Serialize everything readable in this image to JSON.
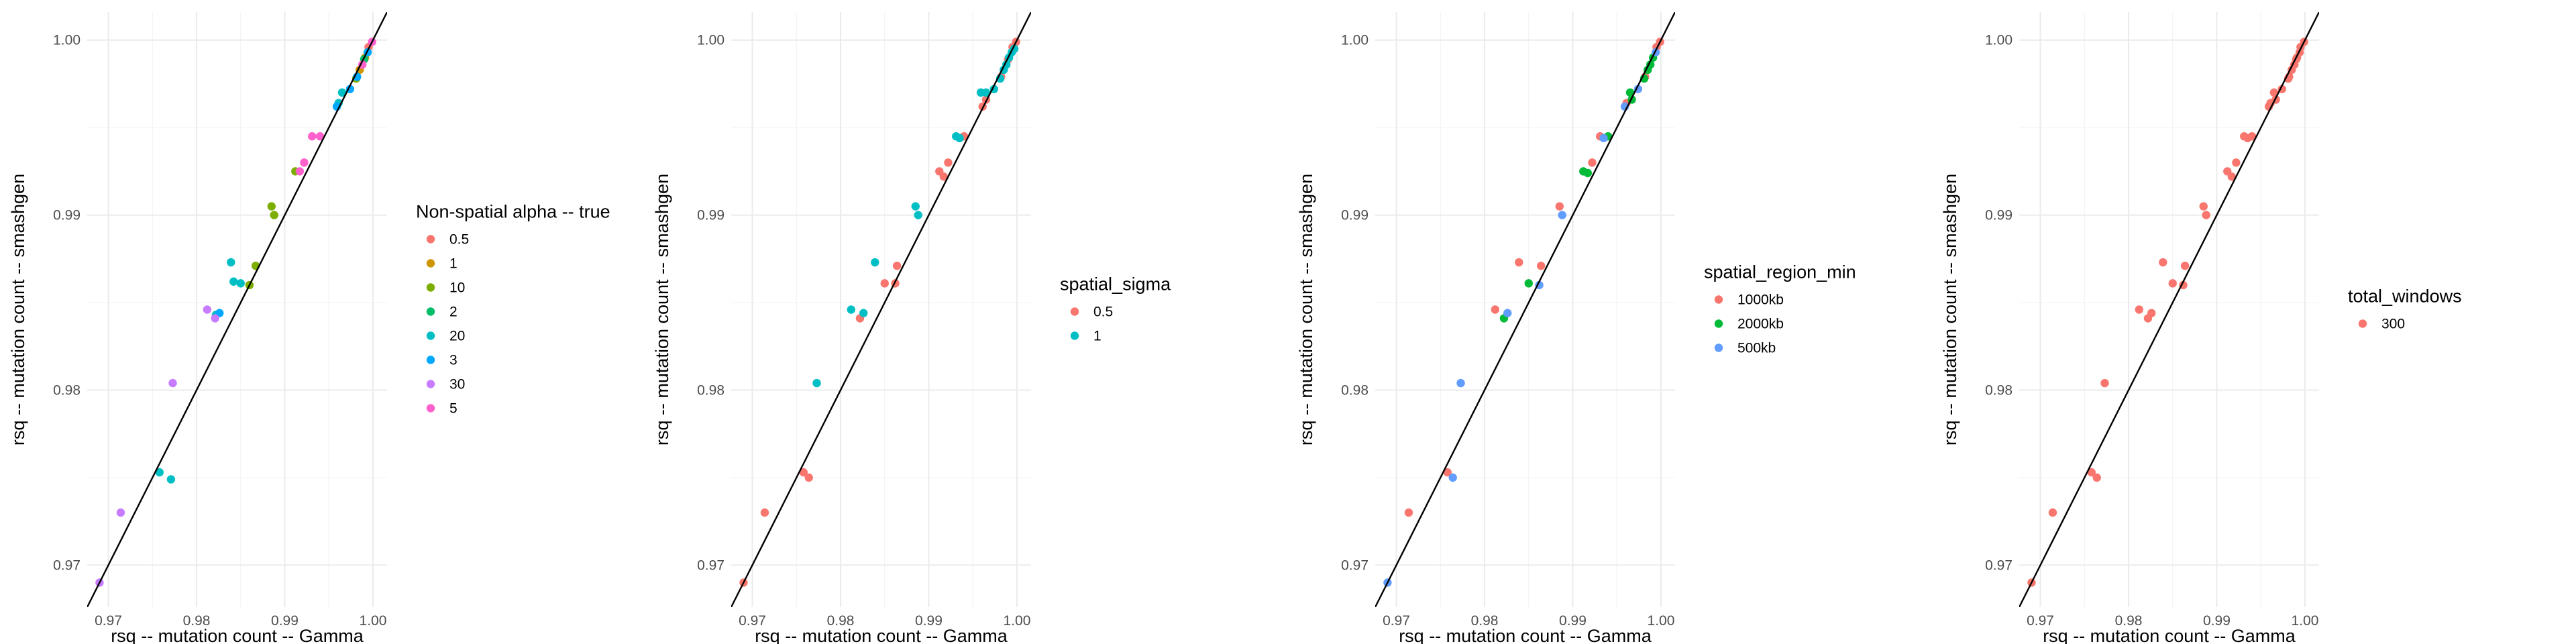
{
  "chart_data": [
    {
      "type": "scatter",
      "xlabel": "rsq -- mutation count -- Gamma",
      "ylabel": "rsq -- mutation count -- smashgen",
      "xlim": [
        0.9676,
        1.0016
      ],
      "ylim": [
        0.9676,
        1.0016
      ],
      "xticks": [
        0.97,
        0.98,
        0.99,
        1.0
      ],
      "xtick_labels": [
        "0.97",
        "0.98",
        "0.99",
        "1.00"
      ],
      "yticks": [
        0.97,
        0.98,
        0.99,
        1.0
      ],
      "ytick_labels": [
        "0.97",
        "0.98",
        "0.99",
        "1.00"
      ],
      "grid": true,
      "reference_line": "y = x",
      "legend": {
        "title": "Non-spatial alpha -- true",
        "placement": "right",
        "items": [
          {
            "label": "0.5",
            "color": "#F8766D"
          },
          {
            "label": "1",
            "color": "#CD9600"
          },
          {
            "label": "10",
            "color": "#7CAE00"
          },
          {
            "label": "2",
            "color": "#00BE67"
          },
          {
            "label": "20",
            "color": "#00BFC4"
          },
          {
            "label": "3",
            "color": "#00A9FF"
          },
          {
            "label": "30",
            "color": "#C77CFF"
          },
          {
            "label": "5",
            "color": "#FF61CC"
          }
        ]
      },
      "series": [
        {
          "name": "0.5",
          "color": "#F8766D",
          "points": [
            [
              0.9995,
              0.9996
            ]
          ]
        },
        {
          "name": "1",
          "color": "#CD9600",
          "points": [
            [
              0.9985,
              0.9983
            ],
            [
              0.9991,
              0.999
            ]
          ]
        },
        {
          "name": "10",
          "color": "#7CAE00",
          "points": [
            [
              0.9981,
              0.9978
            ],
            [
              0.9912,
              0.9925
            ],
            [
              0.9885,
              0.9905
            ],
            [
              0.9888,
              0.99
            ],
            [
              0.9867,
              0.9871
            ],
            [
              0.986,
              0.986
            ]
          ]
        },
        {
          "name": "2",
          "color": "#00BE67",
          "points": [
            [
              0.999,
              0.9989
            ]
          ]
        },
        {
          "name": "20",
          "color": "#00BFC4",
          "points": [
            [
              0.9965,
              0.997
            ],
            [
              0.9961,
              0.9964
            ],
            [
              0.985,
              0.9861
            ],
            [
              0.9842,
              0.9862
            ],
            [
              0.9839,
              0.9873
            ],
            [
              0.9822,
              0.9843
            ],
            [
              0.9758,
              0.9753
            ],
            [
              0.9771,
              0.9749
            ]
          ]
        },
        {
          "name": "3",
          "color": "#00A9FF",
          "points": [
            [
              0.9994,
              0.9993
            ],
            [
              0.9982,
              0.9979
            ],
            [
              0.9974,
              0.9972
            ],
            [
              0.9959,
              0.9962
            ],
            [
              0.9826,
              0.9844
            ]
          ]
        },
        {
          "name": "30",
          "color": "#C77CFF",
          "points": [
            [
              0.9812,
              0.9846
            ],
            [
              0.9821,
              0.9841
            ],
            [
              0.9773,
              0.9804
            ],
            [
              0.9714,
              0.973
            ],
            [
              0.969,
              0.969
            ]
          ]
        },
        {
          "name": "5",
          "color": "#FF61CC",
          "points": [
            [
              0.9999,
              0.9999
            ],
            [
              0.9988,
              0.9986
            ],
            [
              0.9931,
              0.9945
            ],
            [
              0.994,
              0.9945
            ],
            [
              0.9922,
              0.993
            ],
            [
              0.9917,
              0.9925
            ]
          ]
        }
      ]
    },
    {
      "type": "scatter",
      "xlabel": "rsq -- mutation count -- Gamma",
      "ylabel": "rsq -- mutation count -- smashgen",
      "xlim": [
        0.9676,
        1.0016
      ],
      "ylim": [
        0.9676,
        1.0016
      ],
      "xticks": [
        0.97,
        0.98,
        0.99,
        1.0
      ],
      "xtick_labels": [
        "0.97",
        "0.98",
        "0.99",
        "1.00"
      ],
      "yticks": [
        0.97,
        0.98,
        0.99,
        1.0
      ],
      "ytick_labels": [
        "0.97",
        "0.98",
        "0.99",
        "1.00"
      ],
      "grid": true,
      "reference_line": "y = x",
      "legend": {
        "title": "spatial_sigma",
        "placement": "right",
        "items": [
          {
            "label": "0.5",
            "color": "#F8766D"
          },
          {
            "label": "1",
            "color": "#00BFC4"
          }
        ]
      },
      "series": [
        {
          "name": "0.5",
          "color": "#F8766D",
          "points": [
            [
              0.969,
              0.969
            ],
            [
              0.9714,
              0.973
            ],
            [
              0.9758,
              0.9753
            ],
            [
              0.9764,
              0.975
            ],
            [
              0.9822,
              0.9841
            ],
            [
              0.985,
              0.9861
            ],
            [
              0.9862,
              0.9861
            ],
            [
              0.9864,
              0.9871
            ],
            [
              0.9912,
              0.9925
            ],
            [
              0.9917,
              0.9922
            ],
            [
              0.9922,
              0.993
            ],
            [
              0.994,
              0.9945
            ],
            [
              0.9961,
              0.9962
            ],
            [
              0.9965,
              0.9966
            ],
            [
              0.9982,
              0.9979
            ],
            [
              0.999,
              0.9989
            ],
            [
              0.9995,
              0.9996
            ],
            [
              0.9999,
              0.9999
            ]
          ]
        },
        {
          "name": "1",
          "color": "#00BFC4",
          "points": [
            [
              0.9773,
              0.9804
            ],
            [
              0.9812,
              0.9846
            ],
            [
              0.9826,
              0.9844
            ],
            [
              0.9839,
              0.9873
            ],
            [
              0.9885,
              0.9905
            ],
            [
              0.9888,
              0.99
            ],
            [
              0.9931,
              0.9945
            ],
            [
              0.9935,
              0.9944
            ],
            [
              0.9959,
              0.997
            ],
            [
              0.9965,
              0.997
            ],
            [
              0.9974,
              0.9972
            ],
            [
              0.9981,
              0.9978
            ],
            [
              0.9985,
              0.9983
            ],
            [
              0.9988,
              0.9986
            ],
            [
              0.9991,
              0.999
            ],
            [
              0.9994,
              0.9993
            ],
            [
              0.9997,
              0.9995
            ]
          ]
        }
      ]
    },
    {
      "type": "scatter",
      "xlabel": "rsq -- mutation count -- Gamma",
      "ylabel": "rsq -- mutation count -- smashgen",
      "xlim": [
        0.9676,
        1.0016
      ],
      "ylim": [
        0.9676,
        1.0016
      ],
      "xticks": [
        0.97,
        0.98,
        0.99,
        1.0
      ],
      "xtick_labels": [
        "0.97",
        "0.98",
        "0.99",
        "1.00"
      ],
      "yticks": [
        0.97,
        0.98,
        0.99,
        1.0
      ],
      "ytick_labels": [
        "0.97",
        "0.98",
        "0.99",
        "1.00"
      ],
      "grid": true,
      "reference_line": "y = x",
      "legend": {
        "title": "spatial_region_min",
        "placement": "right",
        "items": [
          {
            "label": "1000kb",
            "color": "#F8766D"
          },
          {
            "label": "2000kb",
            "color": "#00BA38"
          },
          {
            "label": "500kb",
            "color": "#619CFF"
          }
        ]
      },
      "series": [
        {
          "name": "1000kb",
          "color": "#F8766D",
          "points": [
            [
              0.9714,
              0.973
            ],
            [
              0.9758,
              0.9753
            ],
            [
              0.9812,
              0.9846
            ],
            [
              0.9839,
              0.9873
            ],
            [
              0.9864,
              0.9871
            ],
            [
              0.9885,
              0.9905
            ],
            [
              0.9922,
              0.993
            ],
            [
              0.9931,
              0.9945
            ],
            [
              0.9961,
              0.9964
            ],
            [
              0.9982,
              0.9979
            ],
            [
              0.9995,
              0.9996
            ],
            [
              0.9999,
              0.9999
            ]
          ]
        },
        {
          "name": "2000kb",
          "color": "#00BA38",
          "points": [
            [
              0.9822,
              0.9841
            ],
            [
              0.985,
              0.9861
            ],
            [
              0.9912,
              0.9925
            ],
            [
              0.9917,
              0.9924
            ],
            [
              0.994,
              0.9945
            ],
            [
              0.9965,
              0.997
            ],
            [
              0.9967,
              0.9966
            ],
            [
              0.9981,
              0.9978
            ],
            [
              0.9985,
              0.9983
            ],
            [
              0.9988,
              0.9986
            ],
            [
              0.9991,
              0.999
            ]
          ]
        },
        {
          "name": "500kb",
          "color": "#619CFF",
          "points": [
            [
              0.969,
              0.969
            ],
            [
              0.9764,
              0.975
            ],
            [
              0.9773,
              0.9804
            ],
            [
              0.9826,
              0.9844
            ],
            [
              0.9862,
              0.986
            ],
            [
              0.9888,
              0.99
            ],
            [
              0.9935,
              0.9944
            ],
            [
              0.9959,
              0.9962
            ],
            [
              0.9974,
              0.9972
            ],
            [
              0.9994,
              0.9993
            ]
          ]
        }
      ]
    },
    {
      "type": "scatter",
      "xlabel": "rsq -- mutation count -- Gamma",
      "ylabel": "rsq -- mutation count -- smashgen",
      "xlim": [
        0.9676,
        1.0016
      ],
      "ylim": [
        0.9676,
        1.0016
      ],
      "xticks": [
        0.97,
        0.98,
        0.99,
        1.0
      ],
      "xtick_labels": [
        "0.97",
        "0.98",
        "0.99",
        "1.00"
      ],
      "yticks": [
        0.97,
        0.98,
        0.99,
        1.0
      ],
      "ytick_labels": [
        "0.97",
        "0.98",
        "0.99",
        "1.00"
      ],
      "grid": true,
      "reference_line": "y = x",
      "legend": {
        "title": "total_windows",
        "placement": "right",
        "items": [
          {
            "label": "300",
            "color": "#F8766D"
          }
        ]
      },
      "series": [
        {
          "name": "300",
          "color": "#F8766D",
          "points": [
            [
              0.969,
              0.969
            ],
            [
              0.9714,
              0.973
            ],
            [
              0.9758,
              0.9753
            ],
            [
              0.9764,
              0.975
            ],
            [
              0.9773,
              0.9804
            ],
            [
              0.9812,
              0.9846
            ],
            [
              0.9822,
              0.9841
            ],
            [
              0.9826,
              0.9844
            ],
            [
              0.9839,
              0.9873
            ],
            [
              0.985,
              0.9861
            ],
            [
              0.9862,
              0.986
            ],
            [
              0.9864,
              0.9871
            ],
            [
              0.9885,
              0.9905
            ],
            [
              0.9888,
              0.99
            ],
            [
              0.9912,
              0.9925
            ],
            [
              0.9917,
              0.9922
            ],
            [
              0.9922,
              0.993
            ],
            [
              0.9931,
              0.9945
            ],
            [
              0.9935,
              0.9944
            ],
            [
              0.994,
              0.9945
            ],
            [
              0.9959,
              0.9962
            ],
            [
              0.9961,
              0.9964
            ],
            [
              0.9965,
              0.997
            ],
            [
              0.9967,
              0.9966
            ],
            [
              0.9974,
              0.9972
            ],
            [
              0.9981,
              0.9978
            ],
            [
              0.9982,
              0.9979
            ],
            [
              0.9985,
              0.9983
            ],
            [
              0.9988,
              0.9986
            ],
            [
              0.999,
              0.9989
            ],
            [
              0.9991,
              0.999
            ],
            [
              0.9994,
              0.9993
            ],
            [
              0.9995,
              0.9996
            ],
            [
              0.9999,
              0.9999
            ]
          ]
        }
      ]
    }
  ]
}
